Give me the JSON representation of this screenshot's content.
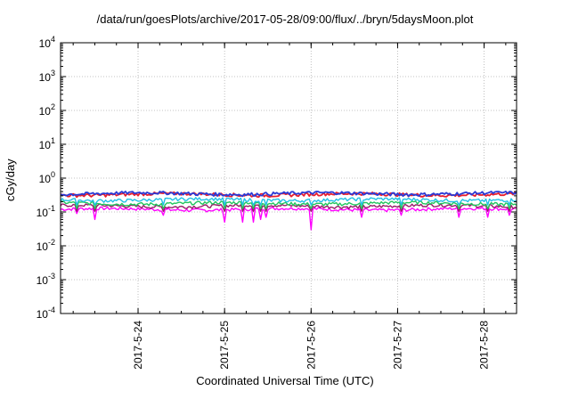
{
  "chart_data": {
    "type": "line",
    "title": "/data/run/goesPlots/archive/2017-05-28/09:00/flux/../bryn/5daysMoon.plot",
    "xlabel": "Coordinated Universal Time (UTC)",
    "ylabel": "cGy/day",
    "yscale": "log",
    "ylim": [
      0.0001,
      10000
    ],
    "yticks": [
      {
        "value": 0.0001,
        "base": "10",
        "exp": "-4"
      },
      {
        "value": 0.001,
        "base": "10",
        "exp": "-3"
      },
      {
        "value": 0.01,
        "base": "10",
        "exp": "-2"
      },
      {
        "value": 0.1,
        "base": "10",
        "exp": "-1"
      },
      {
        "value": 1,
        "base": "10",
        "exp": "0"
      },
      {
        "value": 10,
        "base": "10",
        "exp": "1"
      },
      {
        "value": 100,
        "base": "10",
        "exp": "2"
      },
      {
        "value": 1000,
        "base": "10",
        "exp": "3"
      },
      {
        "value": 10000,
        "base": "10",
        "exp": "4"
      }
    ],
    "xlim": [
      "2017-05-23T02:30",
      "2017-05-28T09:00"
    ],
    "xticks": [
      "2017-5-24",
      "2017-5-25",
      "2017-5-26",
      "2017-5-27",
      "2017-5-28"
    ],
    "xtick_dates": [
      "2017-05-24T00:00",
      "2017-05-25T00:00",
      "2017-05-26T00:00",
      "2017-05-27T00:00",
      "2017-05-28T00:00"
    ],
    "grid": true,
    "series": [
      {
        "color": "#ff00ff",
        "base": 0.12
      },
      {
        "color": "#9a1a6a",
        "base": 0.15
      },
      {
        "color": "#22c55e",
        "base": 0.18
      },
      {
        "color": "#22c0e6",
        "base": 0.23
      },
      {
        "color": "#e81e2e",
        "base": 0.33
      },
      {
        "color": "#2a3ad6",
        "base": 0.35
      }
    ],
    "dips": [
      {
        "date": "2017-05-23T07:00",
        "value": 0.09
      },
      {
        "date": "2017-05-23T12:00",
        "value": 0.06
      },
      {
        "date": "2017-05-24T07:00",
        "value": 0.08
      },
      {
        "date": "2017-05-25T00:00",
        "value": 0.05
      },
      {
        "date": "2017-05-25T05:00",
        "value": 0.05
      },
      {
        "date": "2017-05-25T08:00",
        "value": 0.05
      },
      {
        "date": "2017-05-25T10:00",
        "value": 0.06
      },
      {
        "date": "2017-05-25T11:30",
        "value": 0.07
      },
      {
        "date": "2017-05-26T00:00",
        "value": 0.03
      },
      {
        "date": "2017-05-26T14:00",
        "value": 0.07
      },
      {
        "date": "2017-05-27T01:00",
        "value": 0.08
      },
      {
        "date": "2017-05-27T17:00",
        "value": 0.07
      },
      {
        "date": "2017-05-28T01:00",
        "value": 0.07
      },
      {
        "date": "2017-05-28T07:00",
        "value": 0.08
      }
    ]
  }
}
